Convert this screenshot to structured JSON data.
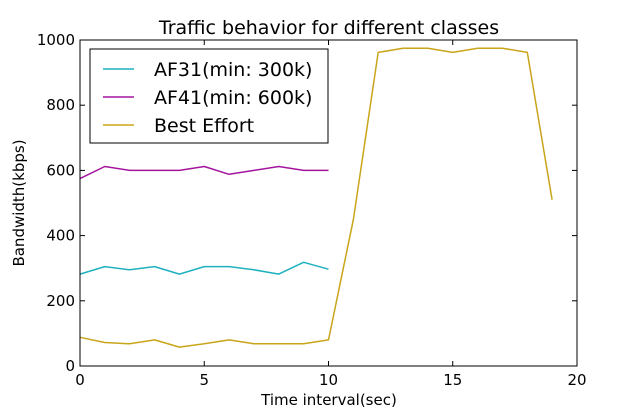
{
  "chart_data": {
    "type": "line",
    "title": "Traffic behavior for different classes",
    "xlabel": "Time interval(sec)",
    "ylabel": "Bandwidth(kbps)",
    "xlim": [
      0,
      20
    ],
    "ylim": [
      0,
      1000
    ],
    "xticks": [
      "0",
      "5",
      "10",
      "15",
      "20"
    ],
    "yticks": [
      "0",
      "200",
      "400",
      "600",
      "800",
      "1000"
    ],
    "grid": false,
    "legend_position": "top-left",
    "series": [
      {
        "name": "AF31(min: 300k)",
        "color": "#1fb1c0",
        "x": [
          0,
          1,
          2,
          3,
          4,
          5,
          6,
          7,
          8,
          9,
          10
        ],
        "y": [
          282,
          305,
          295,
          305,
          282,
          305,
          305,
          295,
          282,
          318,
          297
        ]
      },
      {
        "name": "AF41(min: 600k)",
        "color": "#a4159f",
        "x": [
          0,
          1,
          2,
          3,
          4,
          5,
          6,
          7,
          8,
          9,
          10
        ],
        "y": [
          575,
          612,
          600,
          600,
          600,
          612,
          588,
          600,
          612,
          600,
          600
        ]
      },
      {
        "name": "Best Effort",
        "color": "#c9a51a",
        "x": [
          0,
          1,
          2,
          3,
          4,
          5,
          6,
          7,
          8,
          9,
          10,
          11,
          12,
          13,
          14,
          15,
          16,
          17,
          18,
          19
        ],
        "y": [
          88,
          72,
          68,
          80,
          58,
          68,
          80,
          68,
          68,
          68,
          80,
          450,
          962,
          975,
          975,
          962,
          975,
          975,
          962,
          510
        ]
      }
    ]
  }
}
